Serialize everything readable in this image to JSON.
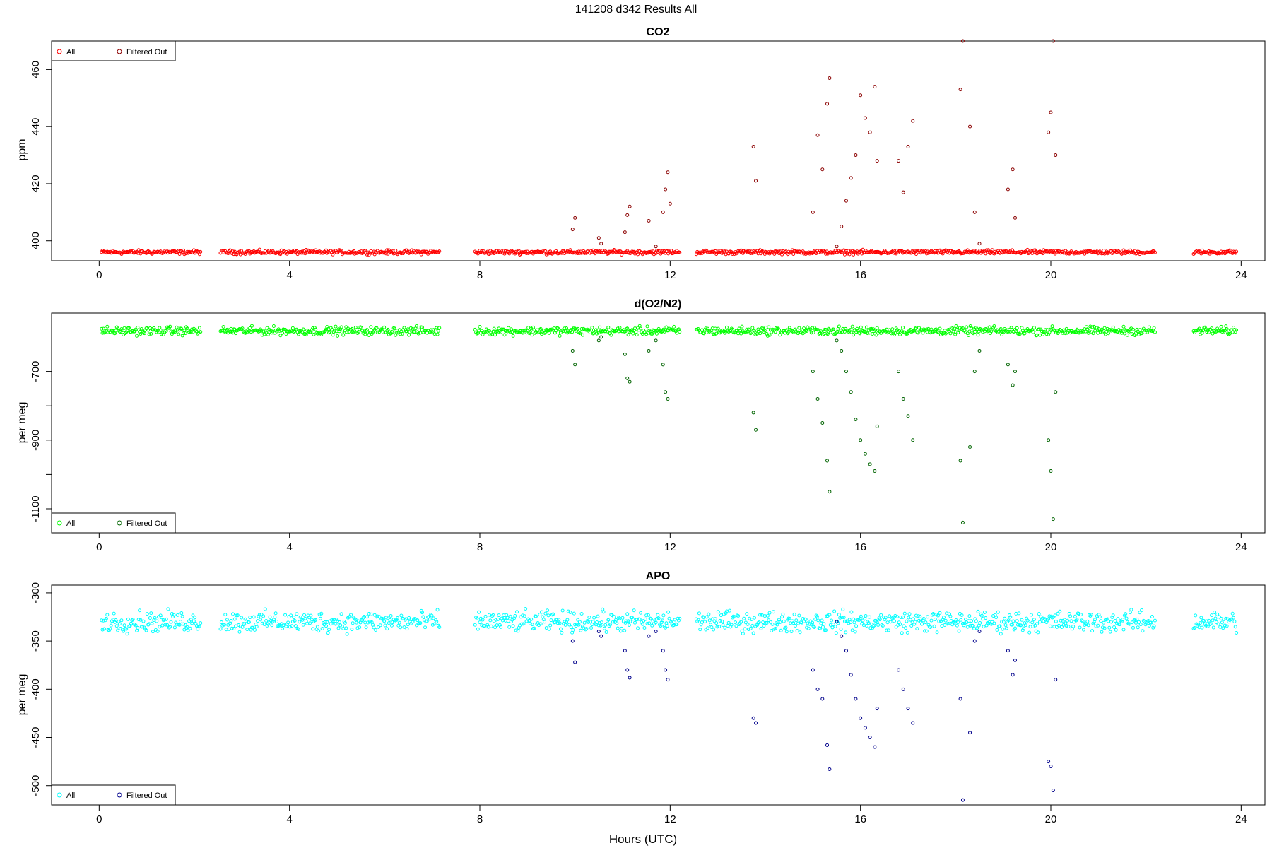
{
  "figure": {
    "title": "141208   d342   Results All",
    "xlabel": "Hours (UTC)"
  },
  "chart_data": [
    {
      "type": "scatter",
      "title": "CO2",
      "xlabel": "Hours (UTC)",
      "ylabel": "ppm",
      "xlim": [
        -1,
        24.5
      ],
      "ylim": [
        393,
        470
      ],
      "xticks": [
        0,
        4,
        8,
        12,
        16,
        20,
        24
      ],
      "yticks": [
        400,
        420,
        440,
        460
      ],
      "baseline": 396,
      "gaps": [
        [
          2.15,
          2.55
        ],
        [
          7.15,
          7.9
        ],
        [
          12.2,
          12.55
        ],
        [
          22.2,
          23.0
        ]
      ],
      "legend": {
        "position": "top-left",
        "entries": [
          "All",
          "Filtered Out"
        ]
      },
      "colors": {
        "all": "#ff0000",
        "filtered": "#8b0000"
      },
      "series": [
        {
          "name": "All",
          "x": [
            0.05,
            2.15,
            2.55,
            7.15,
            7.9,
            12.2,
            12.55,
            22.2,
            23.0,
            23.9
          ],
          "y": [
            396,
            396,
            396,
            396,
            396,
            396,
            396,
            396,
            396,
            396
          ]
        },
        {
          "name": "Filtered Out",
          "x": [
            9.95,
            10.0,
            10.5,
            10.55,
            11.05,
            11.1,
            11.15,
            11.55,
            11.7,
            11.85,
            11.9,
            11.95,
            12.0,
            13.75,
            13.8,
            15.0,
            15.1,
            15.2,
            15.3,
            15.35,
            15.5,
            15.6,
            15.7,
            15.8,
            15.9,
            16.0,
            16.1,
            16.2,
            16.3,
            16.35,
            16.8,
            16.9,
            17.0,
            17.1,
            18.1,
            18.15,
            18.3,
            18.4,
            18.5,
            19.1,
            19.2,
            19.25,
            19.95,
            20.0,
            20.05,
            20.1
          ],
          "y": [
            404,
            408,
            401,
            399,
            403,
            409,
            412,
            407,
            398,
            410,
            418,
            424,
            413,
            433,
            421,
            410,
            437,
            425,
            448,
            457,
            398,
            405,
            414,
            422,
            430,
            451,
            443,
            438,
            454,
            428,
            428,
            417,
            433,
            442,
            453,
            470,
            440,
            410,
            399,
            418,
            425,
            408,
            438,
            445,
            470,
            430
          ]
        }
      ]
    },
    {
      "type": "scatter",
      "title": "d(O2/N2)",
      "xlabel": "Hours (UTC)",
      "ylabel": "per meg",
      "xlim": [
        -1,
        24.5
      ],
      "ylim": [
        -1170,
        -530
      ],
      "xticks": [
        0,
        4,
        8,
        12,
        16,
        20,
        24
      ],
      "yticks": [
        -1100,
        -900,
        -700
      ],
      "ytick_labels": [
        "-1100",
        "",
        "-900",
        "",
        "-700"
      ],
      "baseline": -582,
      "gaps": [
        [
          2.15,
          2.55
        ],
        [
          7.15,
          7.9
        ],
        [
          12.2,
          12.55
        ],
        [
          22.2,
          23.0
        ]
      ],
      "legend": {
        "position": "bottom-left",
        "entries": [
          "All",
          "Filtered Out"
        ]
      },
      "colors": {
        "all": "#00ff00",
        "filtered": "#006400"
      },
      "series": [
        {
          "name": "All",
          "x": [
            0.05,
            2.15,
            2.55,
            7.15,
            7.9,
            12.2,
            12.55,
            22.2,
            23.0,
            23.9
          ],
          "y": [
            -582,
            -582,
            -582,
            -582,
            -582,
            -582,
            -582,
            -582,
            -582,
            -582
          ]
        },
        {
          "name": "Filtered Out",
          "x": [
            9.95,
            10.0,
            10.5,
            10.55,
            11.05,
            11.1,
            11.15,
            11.55,
            11.7,
            11.85,
            11.9,
            11.95,
            13.75,
            13.8,
            15.0,
            15.1,
            15.2,
            15.3,
            15.35,
            15.5,
            15.6,
            15.7,
            15.8,
            15.9,
            16.0,
            16.1,
            16.2,
            16.3,
            16.35,
            16.8,
            16.9,
            17.0,
            17.1,
            18.1,
            18.15,
            18.3,
            18.4,
            18.5,
            19.1,
            19.2,
            19.25,
            19.95,
            20.0,
            20.05,
            20.1
          ],
          "y": [
            -640,
            -680,
            -610,
            -600,
            -650,
            -720,
            -730,
            -640,
            -610,
            -680,
            -760,
            -780,
            -820,
            -870,
            -700,
            -780,
            -850,
            -960,
            -1050,
            -610,
            -640,
            -700,
            -760,
            -840,
            -900,
            -940,
            -970,
            -990,
            -860,
            -700,
            -780,
            -830,
            -900,
            -960,
            -1140,
            -920,
            -700,
            -640,
            -680,
            -740,
            -700,
            -900,
            -990,
            -1130,
            -760
          ]
        }
      ]
    },
    {
      "type": "scatter",
      "title": "APO",
      "xlabel": "Hours (UTC)",
      "ylabel": "per meg",
      "xlim": [
        -1,
        24.5
      ],
      "ylim": [
        -520,
        -292
      ],
      "xticks": [
        0,
        4,
        8,
        12,
        16,
        20,
        24
      ],
      "yticks": [
        -500,
        -450,
        -400,
        -350,
        -300
      ],
      "baseline": -330,
      "gaps": [
        [
          2.15,
          2.55
        ],
        [
          7.15,
          7.9
        ],
        [
          12.2,
          12.55
        ],
        [
          22.2,
          23.0
        ]
      ],
      "legend": {
        "position": "bottom-left",
        "entries": [
          "All",
          "Filtered Out"
        ]
      },
      "colors": {
        "all": "#00ffff",
        "filtered": "#00008b"
      },
      "series": [
        {
          "name": "All",
          "x": [
            0.05,
            2.15,
            2.55,
            7.15,
            7.9,
            12.2,
            12.55,
            22.2,
            23.0,
            23.9
          ],
          "y": [
            -330,
            -330,
            -330,
            -330,
            -330,
            -330,
            -330,
            -330,
            -330,
            -330
          ]
        },
        {
          "name": "Filtered Out",
          "x": [
            9.95,
            10.0,
            10.5,
            10.55,
            11.05,
            11.1,
            11.15,
            11.55,
            11.7,
            11.85,
            11.9,
            11.95,
            13.75,
            13.8,
            15.0,
            15.1,
            15.2,
            15.3,
            15.35,
            15.5,
            15.6,
            15.7,
            15.8,
            15.9,
            16.0,
            16.1,
            16.2,
            16.3,
            16.35,
            16.8,
            16.9,
            17.0,
            17.1,
            18.1,
            18.15,
            18.3,
            18.4,
            18.5,
            19.1,
            19.2,
            19.25,
            19.95,
            20.0,
            20.05,
            20.1
          ],
          "y": [
            -350,
            -372,
            -340,
            -345,
            -360,
            -380,
            -388,
            -345,
            -340,
            -360,
            -380,
            -390,
            -430,
            -435,
            -380,
            -400,
            -410,
            -458,
            -483,
            -330,
            -345,
            -360,
            -385,
            -410,
            -430,
            -440,
            -450,
            -460,
            -420,
            -380,
            -400,
            -420,
            -435,
            -410,
            -515,
            -445,
            -350,
            -340,
            -360,
            -385,
            -370,
            -475,
            -480,
            -505,
            -390
          ]
        }
      ]
    }
  ]
}
